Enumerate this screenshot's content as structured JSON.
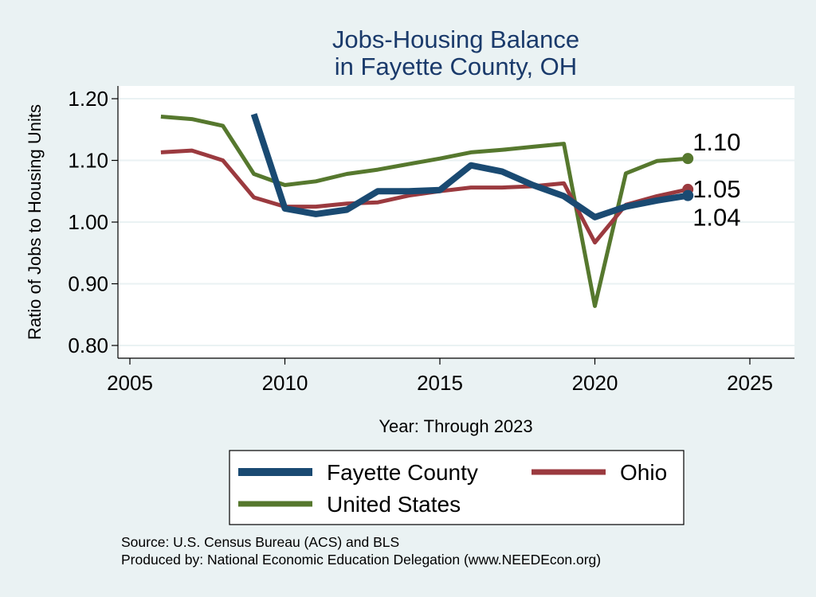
{
  "chart_data": {
    "type": "line",
    "title": [
      "Jobs-Housing Balance",
      "in Fayette County, OH"
    ],
    "xlabel": "Year: Through 2023",
    "ylabel": "Ratio of Jobs to Housing Units",
    "xlim": [
      2005,
      2025
    ],
    "ylim": [
      0.8,
      1.2
    ],
    "xticks": [
      2005,
      2010,
      2015,
      2020,
      2025
    ],
    "yticks": [
      0.8,
      0.9,
      1.0,
      1.1,
      1.2
    ],
    "ytick_labels": [
      "0.80",
      "0.90",
      "1.00",
      "1.10",
      "1.20"
    ],
    "grid": true,
    "legend_position": "bottom",
    "series": [
      {
        "name": "Fayette County",
        "color": "#1a4a72",
        "x": [
          2009,
          2010,
          2011,
          2012,
          2013,
          2014,
          2015,
          2016,
          2017,
          2018,
          2019,
          2020,
          2021,
          2022,
          2023
        ],
        "values": [
          1.175,
          1.022,
          1.013,
          1.02,
          1.05,
          1.05,
          1.052,
          1.092,
          1.082,
          1.06,
          1.042,
          1.008,
          1.025,
          1.035,
          1.043
        ],
        "end_label": "1.04"
      },
      {
        "name": "Ohio",
        "color": "#9b3a3f",
        "x": [
          2006,
          2007,
          2008,
          2009,
          2010,
          2011,
          2012,
          2013,
          2014,
          2015,
          2016,
          2017,
          2018,
          2019,
          2020,
          2021,
          2022,
          2023
        ],
        "values": [
          1.113,
          1.116,
          1.1,
          1.04,
          1.025,
          1.025,
          1.03,
          1.032,
          1.043,
          1.05,
          1.056,
          1.056,
          1.058,
          1.063,
          0.967,
          1.028,
          1.042,
          1.053
        ],
        "end_label": "1.05"
      },
      {
        "name": "United States",
        "color": "#56782e",
        "x": [
          2006,
          2007,
          2008,
          2009,
          2010,
          2011,
          2012,
          2013,
          2014,
          2015,
          2016,
          2017,
          2018,
          2019,
          2020,
          2021,
          2022,
          2023
        ],
        "values": [
          1.171,
          1.167,
          1.156,
          1.078,
          1.06,
          1.066,
          1.078,
          1.085,
          1.094,
          1.103,
          1.113,
          1.117,
          1.122,
          1.127,
          0.864,
          1.079,
          1.099,
          1.103
        ],
        "end_label": "1.10"
      }
    ],
    "notes": [
      "Source: U.S. Census Bureau (ACS) and BLS",
      "Produced by: National Economic Education Delegation (www.NEEDEcon.org)"
    ]
  }
}
